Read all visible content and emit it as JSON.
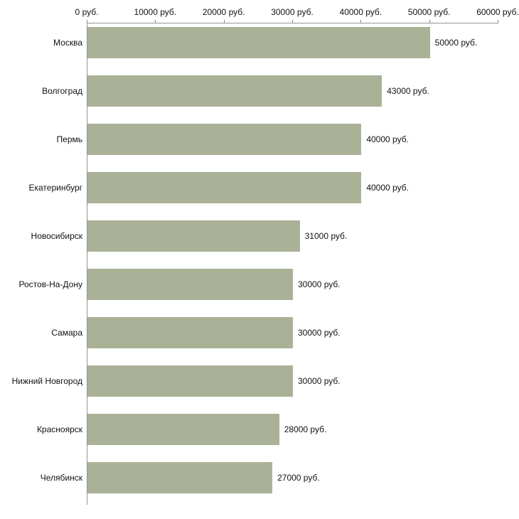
{
  "chart_data": {
    "type": "bar",
    "orientation": "horizontal",
    "title": "",
    "xlabel": "",
    "ylabel": "",
    "xlim": [
      0,
      60000
    ],
    "grid": false,
    "legend": false,
    "x_ticks": [
      0,
      10000,
      20000,
      30000,
      40000,
      50000,
      60000
    ],
    "x_tick_labels": [
      "0 руб.",
      "10000 руб.",
      "20000 руб.",
      "30000 руб.",
      "40000 руб.",
      "50000 руб.",
      "60000 руб."
    ],
    "categories": [
      "Москва",
      "Волгоград",
      "Пермь",
      "Екатеринбург",
      "Новосибирск",
      "Ростов-На-Дону",
      "Самара",
      "Нижний Новгород",
      "Красноярск",
      "Челябинск"
    ],
    "values": [
      50000,
      43000,
      40000,
      40000,
      31000,
      30000,
      30000,
      30000,
      28000,
      27000
    ],
    "value_labels": [
      "50000 руб.",
      "43000 руб.",
      "40000 руб.",
      "40000 руб.",
      "31000 руб.",
      "30000 руб.",
      "30000 руб.",
      "30000 руб.",
      "28000 руб.",
      "27000 руб."
    ],
    "bar_color": "#a9b296",
    "axis_color": "#939393",
    "text_color": "#111111"
  }
}
